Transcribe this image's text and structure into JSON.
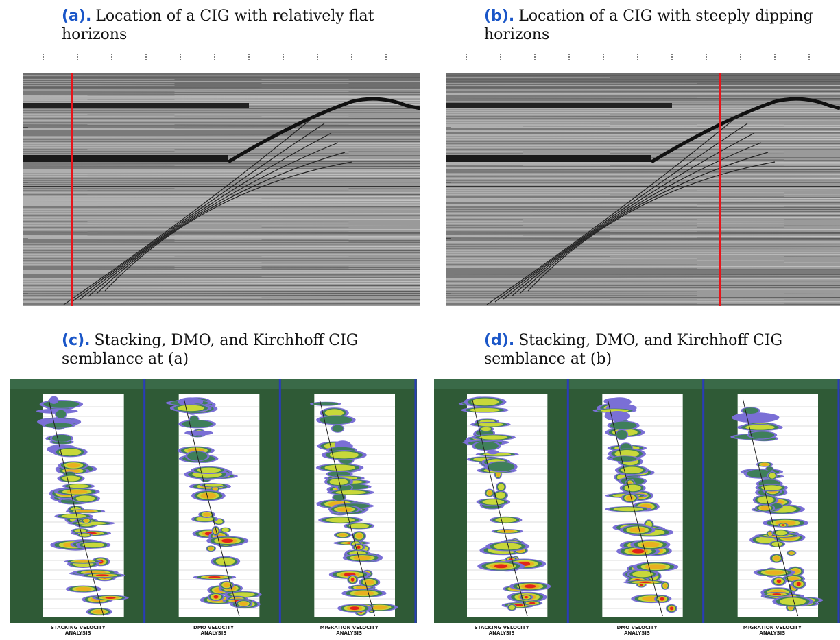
{
  "panels": [
    {
      "label": "(a).",
      "caption": "Location of a CIG with relatively flat horizons"
    },
    {
      "label": "(b).",
      "caption": "Location of a CIG with steeply dipping horizons"
    },
    {
      "label": "(c).",
      "caption": "Stacking, DMO, and Kirchhoff CIG semblance at (a)",
      "analysis_labels": [
        [
          "STACKING VELOCITY",
          "ANALYSIS"
        ],
        [
          "DMO VELOCITY",
          "ANALYSIS"
        ],
        [
          "MIGRATION VELOCITY",
          "ANALYSIS"
        ]
      ]
    },
    {
      "label": "(d).",
      "caption": "Stacking, DMO, and Kirchhoff CIG semblance at (b)",
      "analysis_labels": [
        [
          "STACKING VELOCITY",
          "ANALYSIS"
        ],
        [
          "DMO VELOCITY",
          "ANALYSIS"
        ],
        [
          "MIGRATION VELOCITY",
          "ANALYSIS"
        ]
      ]
    }
  ]
}
